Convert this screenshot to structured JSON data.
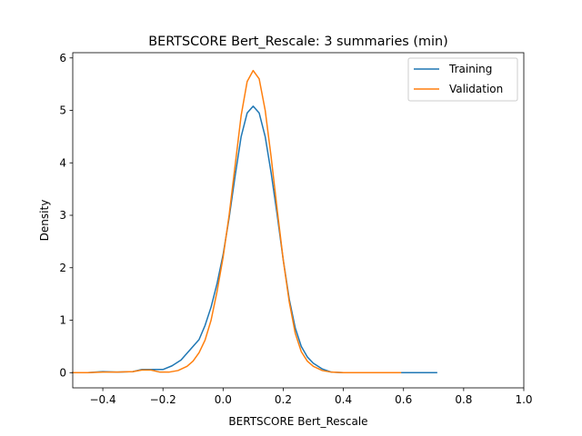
{
  "chart_data": {
    "type": "line",
    "title": "BERTSCORE Bert_Rescale: 3 summaries (min)",
    "xlabel": "BERTSCORE Bert_Rescale",
    "ylabel": "Density",
    "xlim": [
      -0.5,
      1.0
    ],
    "ylim": [
      -0.29,
      6.1
    ],
    "xticks": [
      -0.4,
      -0.2,
      0.0,
      0.2,
      0.4,
      0.6,
      0.8,
      1.0
    ],
    "xtick_labels": [
      "−0.4",
      "−0.2",
      "0.0",
      "0.2",
      "0.4",
      "0.6",
      "0.8",
      "1.0"
    ],
    "yticks": [
      0,
      1,
      2,
      3,
      4,
      5,
      6
    ],
    "ytick_labels": [
      "0",
      "1",
      "2",
      "3",
      "4",
      "5",
      "6"
    ],
    "grid": false,
    "legend_position": "top-right",
    "series": [
      {
        "name": "Training",
        "color": "#1f77b4",
        "x": [
          -0.5,
          -0.45,
          -0.4,
          -0.35,
          -0.3,
          -0.27,
          -0.24,
          -0.2,
          -0.17,
          -0.14,
          -0.12,
          -0.1,
          -0.08,
          -0.06,
          -0.04,
          -0.02,
          0.0,
          0.02,
          0.04,
          0.06,
          0.08,
          0.1,
          0.12,
          0.14,
          0.16,
          0.18,
          0.2,
          0.22,
          0.24,
          0.26,
          0.28,
          0.3,
          0.33,
          0.36,
          0.4,
          0.5,
          0.6,
          0.71
        ],
        "y": [
          0.0,
          0.0,
          0.02,
          0.01,
          0.02,
          0.06,
          0.06,
          0.06,
          0.13,
          0.24,
          0.37,
          0.5,
          0.63,
          0.9,
          1.25,
          1.7,
          2.25,
          2.95,
          3.75,
          4.5,
          4.95,
          5.08,
          4.95,
          4.5,
          3.8,
          3.0,
          2.15,
          1.4,
          0.85,
          0.5,
          0.3,
          0.18,
          0.07,
          0.01,
          0.0,
          0.0,
          0.0,
          0.0
        ]
      },
      {
        "name": "Validation",
        "color": "#ff7f0e",
        "x": [
          -0.5,
          -0.45,
          -0.4,
          -0.35,
          -0.3,
          -0.27,
          -0.24,
          -0.21,
          -0.18,
          -0.15,
          -0.12,
          -0.1,
          -0.08,
          -0.06,
          -0.04,
          -0.02,
          0.0,
          0.02,
          0.04,
          0.06,
          0.08,
          0.1,
          0.12,
          0.14,
          0.16,
          0.18,
          0.2,
          0.22,
          0.24,
          0.26,
          0.28,
          0.3,
          0.33,
          0.36,
          0.4,
          0.5,
          0.59
        ],
        "y": [
          0.0,
          0.0,
          0.01,
          0.01,
          0.02,
          0.05,
          0.05,
          0.01,
          0.01,
          0.04,
          0.12,
          0.22,
          0.38,
          0.62,
          1.0,
          1.55,
          2.2,
          3.0,
          3.95,
          4.9,
          5.55,
          5.76,
          5.6,
          5.0,
          4.1,
          3.1,
          2.15,
          1.35,
          0.75,
          0.4,
          0.22,
          0.12,
          0.04,
          0.01,
          0.0,
          0.0,
          0.0
        ]
      }
    ]
  }
}
